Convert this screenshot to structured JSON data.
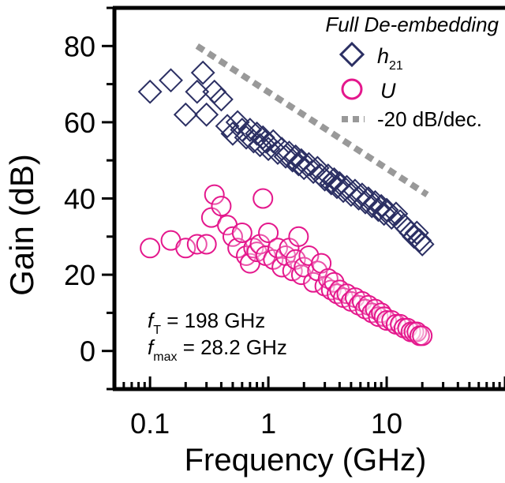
{
  "chart_data": {
    "type": "scatter",
    "title": "",
    "xlabel": "Frequency (GHz)",
    "ylabel": "Gain (dB)",
    "xscale": "log",
    "xlim": [
      0.05,
      100
    ],
    "ylim": [
      -10,
      90
    ],
    "xticks": [
      {
        "value": 0.1,
        "label": "0.1"
      },
      {
        "value": 1,
        "label": "1"
      },
      {
        "value": 10,
        "label": "10"
      }
    ],
    "yticks": [
      {
        "value": 0,
        "label": "0"
      },
      {
        "value": 20,
        "label": "20"
      },
      {
        "value": 40,
        "label": "40"
      },
      {
        "value": 60,
        "label": "60"
      },
      {
        "value": 80,
        "label": "80"
      }
    ],
    "legend": {
      "title": "Full De-embedding",
      "placement": "top-right",
      "entries": [
        {
          "label": "h",
          "sub": "21",
          "marker": "diamond",
          "color": "#2b2f63"
        },
        {
          "label": "U",
          "sub": "",
          "marker": "circle",
          "color": "#e4178c"
        },
        {
          "label": "-20 dB/dec.",
          "sub": "",
          "marker": "dashed-line",
          "color": "#999999"
        }
      ]
    },
    "annotations": [
      {
        "symbol": "f",
        "sub": "T",
        "text": " = 198 GHz"
      },
      {
        "symbol": "f",
        "sub": "max",
        "text": " =  28.2 GHz"
      }
    ],
    "series": [
      {
        "name": "h21",
        "marker": "diamond",
        "color": "#2b2f63",
        "points": [
          [
            0.1,
            68
          ],
          [
            0.15,
            71
          ],
          [
            0.2,
            62
          ],
          [
            0.25,
            68
          ],
          [
            0.28,
            73
          ],
          [
            0.3,
            62
          ],
          [
            0.35,
            68
          ],
          [
            0.4,
            66
          ],
          [
            0.45,
            59
          ],
          [
            0.5,
            57
          ],
          [
            0.55,
            60
          ],
          [
            0.6,
            58
          ],
          [
            0.65,
            56
          ],
          [
            0.7,
            58
          ],
          [
            0.75,
            55
          ],
          [
            0.8,
            57
          ],
          [
            0.85,
            54
          ],
          [
            0.9,
            56
          ],
          [
            0.95,
            55
          ],
          [
            1.0,
            53
          ],
          [
            1.1,
            55
          ],
          [
            1.2,
            52
          ],
          [
            1.3,
            53
          ],
          [
            1.4,
            51
          ],
          [
            1.5,
            52
          ],
          [
            1.6,
            50
          ],
          [
            1.7,
            51
          ],
          [
            1.8,
            49
          ],
          [
            1.9,
            50
          ],
          [
            2.0,
            48
          ],
          [
            2.2,
            49
          ],
          [
            2.4,
            47
          ],
          [
            2.6,
            48
          ],
          [
            2.8,
            46
          ],
          [
            3.0,
            45
          ],
          [
            3.2,
            46
          ],
          [
            3.4,
            44
          ],
          [
            3.6,
            45
          ],
          [
            3.8,
            43
          ],
          [
            4.0,
            44
          ],
          [
            4.3,
            42
          ],
          [
            4.6,
            43
          ],
          [
            5.0,
            41
          ],
          [
            5.4,
            42
          ],
          [
            5.8,
            40
          ],
          [
            6.2,
            41
          ],
          [
            6.6,
            39
          ],
          [
            7.0,
            40
          ],
          [
            7.5,
            38
          ],
          [
            8.0,
            39
          ],
          [
            8.5,
            37
          ],
          [
            9.0,
            38
          ],
          [
            9.5,
            36
          ],
          [
            10,
            37
          ],
          [
            11,
            35
          ],
          [
            12,
            36
          ],
          [
            13,
            34
          ],
          [
            14,
            33
          ],
          [
            15,
            32
          ],
          [
            16,
            31
          ],
          [
            17,
            30
          ],
          [
            18,
            31
          ],
          [
            19,
            29
          ],
          [
            20,
            28
          ]
        ]
      },
      {
        "name": "U",
        "marker": "circle",
        "color": "#e4178c",
        "points": [
          [
            0.1,
            27
          ],
          [
            0.15,
            29
          ],
          [
            0.2,
            27
          ],
          [
            0.25,
            28
          ],
          [
            0.3,
            28
          ],
          [
            0.33,
            35
          ],
          [
            0.35,
            41
          ],
          [
            0.4,
            38
          ],
          [
            0.45,
            33
          ],
          [
            0.5,
            30
          ],
          [
            0.55,
            27
          ],
          [
            0.6,
            31
          ],
          [
            0.65,
            25
          ],
          [
            0.7,
            23
          ],
          [
            0.75,
            27
          ],
          [
            0.8,
            26
          ],
          [
            0.85,
            28
          ],
          [
            0.9,
            40
          ],
          [
            0.95,
            25
          ],
          [
            1.0,
            31
          ],
          [
            1.1,
            24
          ],
          [
            1.2,
            27
          ],
          [
            1.3,
            22
          ],
          [
            1.4,
            25
          ],
          [
            1.5,
            27
          ],
          [
            1.6,
            21
          ],
          [
            1.7,
            24
          ],
          [
            1.8,
            30
          ],
          [
            1.9,
            20
          ],
          [
            2.0,
            22
          ],
          [
            2.2,
            25
          ],
          [
            2.4,
            18
          ],
          [
            2.6,
            21
          ],
          [
            2.8,
            23
          ],
          [
            3.0,
            17
          ],
          [
            3.2,
            19
          ],
          [
            3.4,
            16
          ],
          [
            3.6,
            18
          ],
          [
            3.8,
            15
          ],
          [
            4.0,
            16
          ],
          [
            4.3,
            14
          ],
          [
            4.6,
            15
          ],
          [
            5.0,
            13
          ],
          [
            5.4,
            14
          ],
          [
            5.8,
            12
          ],
          [
            6.2,
            13
          ],
          [
            6.6,
            11
          ],
          [
            7.0,
            12
          ],
          [
            7.5,
            10
          ],
          [
            8.0,
            11
          ],
          [
            8.5,
            9
          ],
          [
            9.0,
            10
          ],
          [
            9.5,
            9
          ],
          [
            10,
            8
          ],
          [
            11,
            8
          ],
          [
            12,
            7
          ],
          [
            13,
            7
          ],
          [
            14,
            6
          ],
          [
            15,
            6
          ],
          [
            16,
            5
          ],
          [
            17,
            5
          ],
          [
            18,
            5
          ],
          [
            19,
            4
          ],
          [
            20,
            4
          ]
        ]
      },
      {
        "name": "-20 dB/dec.",
        "marker": "dashed-line",
        "color": "#999999",
        "points": [
          [
            0.25,
            80
          ],
          [
            22,
            41
          ]
        ]
      }
    ]
  }
}
